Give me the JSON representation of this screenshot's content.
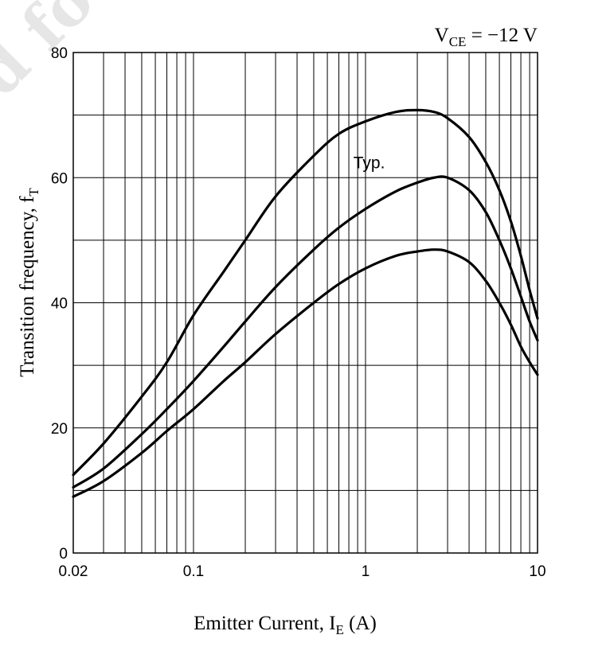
{
  "chart_data": {
    "type": "line",
    "title": "",
    "condition": {
      "prefix": "V",
      "sub": "CE",
      "suffix": " = −12 V"
    },
    "xlabel": {
      "prefix": "Emitter Current, I",
      "sub": "E",
      "suffix": " (A)"
    },
    "ylabel": {
      "prefix": "Transition frequency, f",
      "sub": "T"
    },
    "x_scale": "log",
    "xlim": [
      0.02,
      10
    ],
    "ylim": [
      0,
      80
    ],
    "x_ticks": [
      0.02,
      0.1,
      1,
      10
    ],
    "x_tick_labels": [
      "0.02",
      "0.1",
      "1",
      "10"
    ],
    "y_ticks": [
      0,
      20,
      40,
      60,
      80
    ],
    "y_tick_labels": [
      "0",
      "20",
      "40",
      "60",
      "80"
    ],
    "grid": true,
    "annotation": {
      "text": "Typ.",
      "x": 0.85,
      "y": 62.5
    },
    "watermark_text": "d fo",
    "series": [
      {
        "x": [
          0.02,
          0.03,
          0.05,
          0.07,
          0.1,
          0.15,
          0.2,
          0.3,
          0.5,
          0.7,
          1,
          1.5,
          2,
          2.5,
          3,
          4,
          5,
          6,
          7,
          8,
          9,
          10
        ],
        "y": [
          12.5,
          17.5,
          25,
          30.5,
          38,
          45,
          50,
          57,
          63.5,
          67,
          69,
          70.5,
          70.8,
          70.5,
          69.5,
          66.5,
          62.5,
          58,
          53,
          47.5,
          42,
          37.5
        ]
      },
      {
        "x": [
          0.02,
          0.03,
          0.05,
          0.07,
          0.1,
          0.15,
          0.2,
          0.3,
          0.5,
          0.7,
          1,
          1.5,
          2,
          2.5,
          3,
          4,
          5,
          6,
          7,
          8,
          9,
          10
        ],
        "y": [
          10.5,
          13.5,
          19,
          23,
          27.5,
          33,
          37,
          42.5,
          48.5,
          52,
          55,
          57.8,
          59.2,
          60,
          60,
          58,
          54.5,
          50,
          45.5,
          41,
          37,
          34
        ]
      },
      {
        "x": [
          0.02,
          0.03,
          0.05,
          0.07,
          0.1,
          0.15,
          0.2,
          0.3,
          0.5,
          0.7,
          1,
          1.5,
          2,
          2.5,
          3,
          4,
          5,
          6,
          7,
          8,
          9,
          10
        ],
        "y": [
          9,
          11.5,
          16,
          19.5,
          23,
          27.5,
          30.5,
          35,
          40,
          43,
          45.5,
          47.5,
          48.2,
          48.5,
          48.2,
          46.5,
          43.5,
          40,
          36.5,
          33,
          30.5,
          28.5
        ]
      }
    ]
  }
}
